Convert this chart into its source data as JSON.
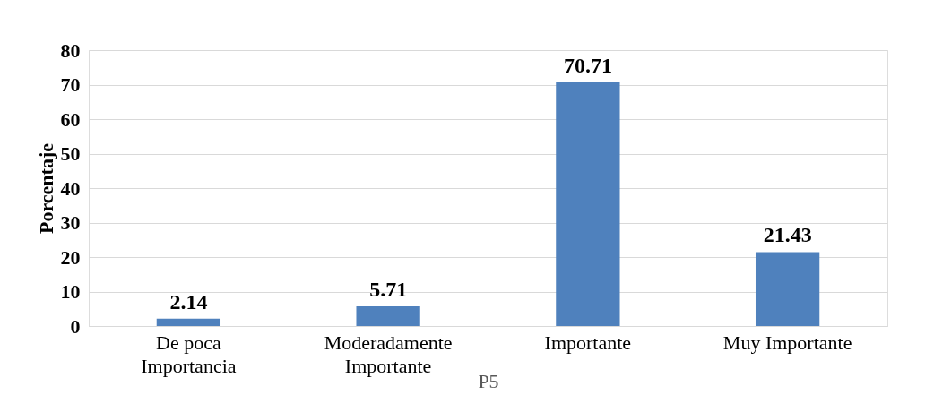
{
  "chart_data": {
    "type": "bar",
    "xlabel": "P5",
    "ylabel": "Porcentaje",
    "categories": [
      "De poca Importancia",
      "Moderadamente Importante",
      "Importante",
      "Muy Importante"
    ],
    "values": [
      2.14,
      5.71,
      70.71,
      21.43
    ],
    "color": "#4f81bd",
    "ylim": [
      0,
      80
    ],
    "yticks": [
      0,
      10,
      20,
      30,
      40,
      50,
      60,
      70,
      80
    ],
    "grid": "y",
    "data_labels": true
  }
}
